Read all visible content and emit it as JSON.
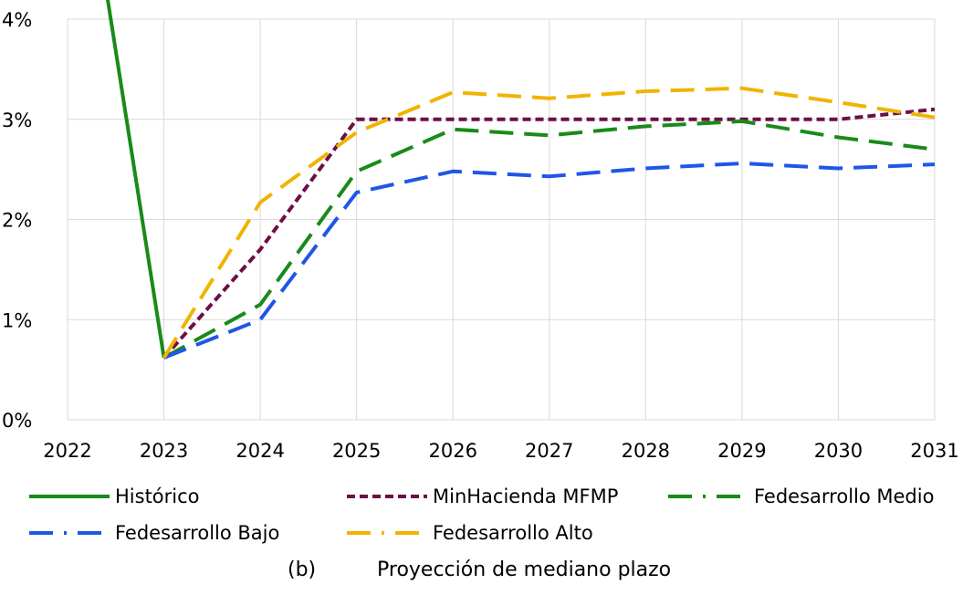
{
  "chart_data": {
    "type": "line",
    "title": "Proyección de mediano plazo",
    "panel_label": "(b)",
    "xlabel": "",
    "ylabel": "",
    "xlim": [
      2022,
      2031
    ],
    "ylim": [
      0,
      4
    ],
    "x_ticks": [
      "2022",
      "2023",
      "2024",
      "2025",
      "2026",
      "2027",
      "2028",
      "2029",
      "2030",
      "2031"
    ],
    "y_ticks": [
      "0%",
      "1%",
      "2%",
      "3%",
      "4%"
    ],
    "grid": true,
    "legend_position": "bottom",
    "series": [
      {
        "name": "Histórico",
        "color": "#1a8a1a",
        "style": "solid",
        "x": [
          2022.4,
          2023
        ],
        "y": [
          4.3,
          0.62
        ]
      },
      {
        "name": "MinHacienda MFMP",
        "color": "#6b0f46",
        "style": "short-dash",
        "x": [
          2023,
          2024,
          2025,
          2026,
          2027,
          2028,
          2029,
          2030,
          2031
        ],
        "y": [
          0.62,
          1.7,
          3.0,
          3.0,
          3.0,
          3.0,
          3.0,
          3.0,
          3.1
        ]
      },
      {
        "name": "Fedesarrollo Medio",
        "color": "#1a8a1a",
        "style": "long-dash",
        "x": [
          2023,
          2024,
          2025,
          2026,
          2027,
          2028,
          2029,
          2030,
          2031
        ],
        "y": [
          0.62,
          1.15,
          2.48,
          2.9,
          2.84,
          2.93,
          2.98,
          2.82,
          2.7
        ]
      },
      {
        "name": "Fedesarrollo Bajo",
        "color": "#1f56e6",
        "style": "long-dash",
        "x": [
          2023,
          2024,
          2025,
          2026,
          2027,
          2028,
          2029,
          2030,
          2031
        ],
        "y": [
          0.62,
          1.0,
          2.27,
          2.48,
          2.43,
          2.51,
          2.56,
          2.51,
          2.55
        ]
      },
      {
        "name": "Fedesarrollo Alto",
        "color": "#f0b400",
        "style": "long-dash",
        "x": [
          2023,
          2024,
          2025,
          2026,
          2027,
          2028,
          2029,
          2030,
          2031
        ],
        "y": [
          0.62,
          2.17,
          2.87,
          3.27,
          3.21,
          3.28,
          3.31,
          3.17,
          3.02
        ]
      }
    ]
  }
}
